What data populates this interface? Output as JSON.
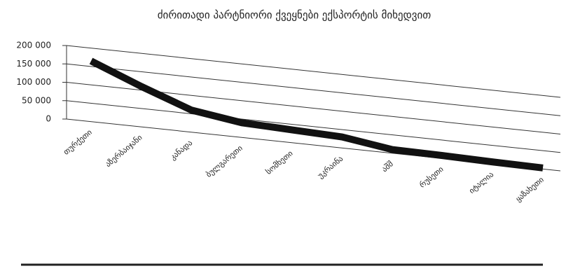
{
  "chart_data": {
    "type": "line",
    "title": "ძირითადი პარტნიორი ქვეყნები ექსპორტის მიხედვით",
    "categories": [
      "თურქეთი",
      "აზერბაიჯანი",
      "კანადა",
      "ბულგარეთი",
      "სომხეთი",
      "უკრაინა",
      "აშშ",
      "რუსეთი",
      "იტალია",
      "ყაზახეთი"
    ],
    "values": [
      165000,
      110000,
      60000,
      40000,
      35000,
      30000,
      10000,
      8000,
      5000,
      3000
    ],
    "color": "#111111",
    "ylim": [
      0,
      200000
    ],
    "yticks": [
      {
        "value": 0,
        "label": "0"
      },
      {
        "value": 50000,
        "label": "50 000"
      },
      {
        "value": 100000,
        "label": "100 000"
      },
      {
        "value": 150000,
        "label": "150 000"
      },
      {
        "value": 200000,
        "label": "200 000"
      }
    ],
    "grid": true
  }
}
